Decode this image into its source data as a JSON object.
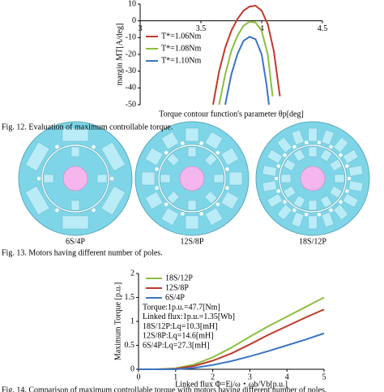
{
  "chart_data": [
    {
      "type": "line",
      "caption": "Fig. 12. Evaluation of maximum controllable torque.",
      "x_label": "Torque contour function's parameter θp[deg]",
      "y_label": "margin MT[A/deg]",
      "xlim": [
        3,
        4.5
      ],
      "xticks": [
        3,
        3.5,
        4,
        4.5
      ],
      "ylim": [
        -50,
        10
      ],
      "yticks": [
        10,
        0,
        -10,
        -20,
        -30,
        -40,
        -50
      ],
      "legend": "upper left",
      "series": [
        {
          "name": "T*=1.06Nm",
          "color": "#c0392b",
          "x": [
            3.6,
            3.65,
            3.7,
            3.75,
            3.8,
            3.85,
            3.9,
            3.95,
            4.0,
            4.05,
            4.1,
            4.15
          ],
          "values": [
            -50,
            -30,
            -16,
            -6,
            1,
            6,
            8.5,
            9,
            6,
            -2,
            -18,
            -45
          ]
        },
        {
          "name": "T*=1.08Nm",
          "color": "#8cbf3f",
          "x": [
            3.65,
            3.7,
            3.75,
            3.8,
            3.85,
            3.9,
            3.95,
            4.0,
            4.05,
            4.09
          ],
          "values": [
            -50,
            -32,
            -18,
            -9,
            -3,
            -0.5,
            -1,
            -6,
            -20,
            -45
          ]
        },
        {
          "name": "T*=1.10Nm",
          "color": "#3a75c4",
          "x": [
            3.7,
            3.75,
            3.8,
            3.85,
            3.9,
            3.95,
            4.0,
            4.04,
            4.06
          ],
          "values": [
            -50,
            -32,
            -20,
            -12,
            -9.5,
            -11,
            -20,
            -38,
            -50
          ]
        }
      ]
    },
    {
      "type": "line",
      "caption": "Fig. 14. Comparison of maximum controllable torque with motors having different number of poles.",
      "x_label": "Linked flux Φ=Ei/ω・ωb/Vb[p.u.]",
      "y_label": "Maximum Torque [p.u.]",
      "xlim": [
        0,
        5
      ],
      "xticks": [
        0,
        1,
        2,
        3,
        4,
        5
      ],
      "ylim": [
        0,
        2
      ],
      "yticks": [
        0,
        0.5,
        1,
        1.5,
        2
      ],
      "legend": "upper left",
      "annotations": [
        "Torque:1p.u.=47.7[Nm]",
        "Linked flux:1p.u.=1.35[Wb]",
        "18S/12P:Lq=10.3[mH]",
        "12S/8P:Lq=14.6[mH]",
        "6S/4P:Lq=27.3[mH]"
      ],
      "series": [
        {
          "name": "18S/12P",
          "color": "#8cbf3f",
          "x": [
            0,
            0.5,
            1,
            1.5,
            2,
            2.5,
            3,
            3.5,
            4,
            4.5,
            5
          ],
          "values": [
            0,
            0,
            0.02,
            0.1,
            0.25,
            0.45,
            0.68,
            0.9,
            1.1,
            1.3,
            1.5
          ]
        },
        {
          "name": "12S/8P",
          "color": "#c0392b",
          "x": [
            0,
            0.5,
            1,
            1.5,
            2,
            2.5,
            3,
            3.5,
            4,
            4.5,
            5
          ],
          "values": [
            0,
            0,
            0.01,
            0.07,
            0.18,
            0.33,
            0.52,
            0.72,
            0.9,
            1.08,
            1.25
          ]
        },
        {
          "name": "6S/4P",
          "color": "#3a75c4",
          "x": [
            0,
            0.5,
            1,
            1.5,
            2,
            2.5,
            3,
            3.5,
            4,
            4.5,
            5
          ],
          "values": [
            0,
            0,
            0,
            0.03,
            0.09,
            0.17,
            0.27,
            0.38,
            0.5,
            0.62,
            0.75
          ]
        }
      ]
    }
  ],
  "figure13": {
    "labels": [
      "6S/4P",
      "12S/8P",
      "18S/12P"
    ],
    "caption": "Fig. 13. Motors having different number of poles."
  }
}
